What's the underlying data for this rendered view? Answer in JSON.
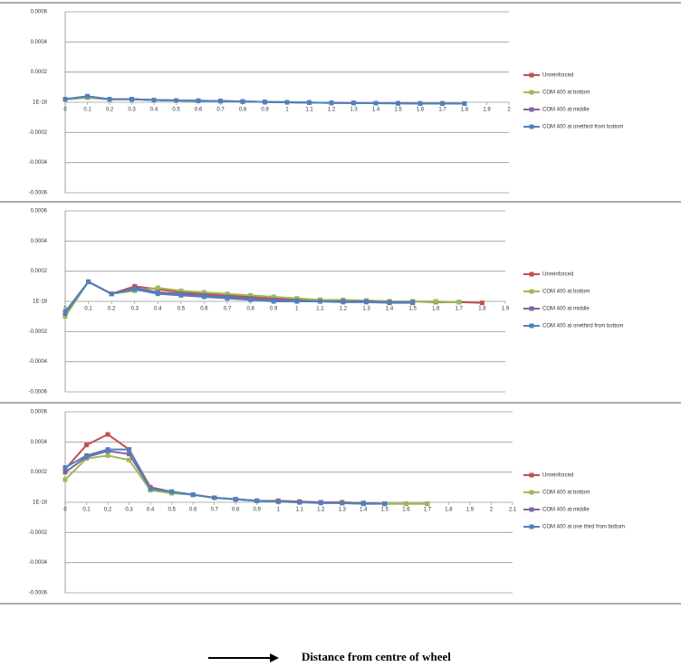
{
  "chart_data": [
    {
      "type": "line",
      "x": [
        0,
        0.1,
        0.2,
        0.3,
        0.4,
        0.5,
        0.6,
        0.7,
        0.8,
        0.9,
        1,
        1.1,
        1.2,
        1.3,
        1.4,
        1.5,
        1.6,
        1.7,
        1.8
      ],
      "xlim": [
        0,
        2
      ],
      "xticks": [
        0,
        0.1,
        0.2,
        0.3,
        0.4,
        0.5,
        0.6,
        0.7,
        0.8,
        0.9,
        1,
        1.1,
        1.2,
        1.3,
        1.4,
        1.5,
        1.6,
        1.7,
        1.8,
        1.9,
        2
      ],
      "ylim": [
        -0.0006,
        0.0006
      ],
      "yticks": [
        0.0006,
        0.0004,
        0.0002,
        {
          "value": 1e-18,
          "label": "1E-18"
        },
        -0.0002,
        -0.0004,
        -0.0006
      ],
      "grid": true,
      "series": [
        {
          "name": "Unreinforced",
          "color": "#c0504d",
          "values": [
            2e-05,
            3e-05,
            2e-05,
            2e-05,
            1.5e-05,
            1.2e-05,
            1e-05,
            8e-06,
            5e-06,
            2e-06,
            0,
            -2e-06,
            -4e-06,
            -5e-06,
            -6e-06,
            -7e-06,
            -8e-06,
            -8e-06,
            -9e-06
          ]
        },
        {
          "name": "COM 400 at bottom",
          "color": "#9bbb59",
          "values": [
            2e-05,
            3e-05,
            2e-05,
            2e-05,
            1.5e-05,
            1.2e-05,
            1e-05,
            8e-06,
            5e-06,
            2e-06,
            0,
            -2e-06,
            -4e-06,
            -5e-06,
            -6e-06,
            -7e-06,
            -8e-06,
            -8e-06,
            -9e-06
          ]
        },
        {
          "name": "COM 400 at middle",
          "color": "#8064a2",
          "values": [
            2e-05,
            4e-05,
            2e-05,
            2e-05,
            1.5e-05,
            1.2e-05,
            1e-05,
            8e-06,
            5e-06,
            2e-06,
            0,
            -2e-06,
            -4e-06,
            -5e-06,
            -6e-06,
            -7e-06,
            -8e-06,
            -8e-06,
            -9e-06
          ]
        },
        {
          "name": "COM 400 at onethird from bottom",
          "color": "#4f81bd",
          "values": [
            2e-05,
            4e-05,
            2e-05,
            2e-05,
            1.5e-05,
            1.2e-05,
            1e-05,
            8e-06,
            5e-06,
            2e-06,
            0,
            -2e-06,
            -4e-06,
            -5e-06,
            -6e-06,
            -7e-06,
            -8e-06,
            -8e-06,
            -9e-06
          ]
        }
      ]
    },
    {
      "type": "line",
      "x": [
        0,
        0.1,
        0.2,
        0.3,
        0.4,
        0.5,
        0.6,
        0.7,
        0.8,
        0.9,
        1,
        1.1,
        1.2,
        1.3,
        1.4,
        1.5,
        1.6,
        1.7,
        1.8
      ],
      "xlim": [
        0,
        1.9
      ],
      "xticks": [
        0,
        0.1,
        0.2,
        0.3,
        0.4,
        0.5,
        0.6,
        0.7,
        0.8,
        0.9,
        1,
        1.1,
        1.2,
        1.3,
        1.4,
        1.5,
        1.6,
        1.7,
        1.8,
        1.9
      ],
      "ylim": [
        -0.0006,
        0.0006
      ],
      "yticks": [
        0.0006,
        0.0004,
        0.0002,
        {
          "value": 1e-18,
          "label": "1E-18"
        },
        -0.0002,
        -0.0004,
        -0.0006
      ],
      "grid": true,
      "series": [
        {
          "name": "Unreinforced",
          "color": "#c0504d",
          "values": [
            -8e-05,
            0.00013,
            5e-05,
            0.0001,
            8e-05,
            6e-05,
            5e-05,
            4e-05,
            3e-05,
            2e-05,
            1e-05,
            1e-05,
            5e-06,
            5e-06,
            0,
            0,
            -5e-06,
            -5e-06,
            -1e-05
          ]
        },
        {
          "name": "COM 400 at bottom",
          "color": "#9bbb59",
          "values": [
            -0.0001,
            0.00013,
            5e-05,
            7e-05,
            9e-05,
            7e-05,
            6e-05,
            5e-05,
            4e-05,
            3e-05,
            2e-05,
            1e-05,
            1e-05,
            5e-06,
            0,
            0,
            0,
            -5e-06,
            null
          ]
        },
        {
          "name": "COM 400 at middle",
          "color": "#8064a2",
          "values": [
            -8e-05,
            0.00013,
            5e-05,
            9e-05,
            6e-05,
            5e-05,
            4e-05,
            3e-05,
            2e-05,
            1e-05,
            5e-06,
            0,
            0,
            0,
            -5e-06,
            -5e-06,
            null,
            null,
            null
          ]
        },
        {
          "name": "COM 400 at onethird from bottom",
          "color": "#4f81bd",
          "values": [
            -7e-05,
            0.00013,
            5e-05,
            8e-05,
            5e-05,
            4e-05,
            3e-05,
            2e-05,
            1e-05,
            0,
            0,
            0,
            -5e-06,
            -5e-06,
            -1e-05,
            -1e-05,
            null,
            null,
            null
          ]
        }
      ]
    },
    {
      "type": "line",
      "x": [
        0,
        0.1,
        0.2,
        0.3,
        0.4,
        0.5,
        0.6,
        0.7,
        0.8,
        0.9,
        1,
        1.1,
        1.2,
        1.3,
        1.4,
        1.5,
        1.6,
        1.7
      ],
      "xlim": [
        0,
        2.1
      ],
      "xticks": [
        0,
        0.1,
        0.2,
        0.3,
        0.4,
        0.5,
        0.6,
        0.7,
        0.8,
        0.9,
        1,
        1.1,
        1.2,
        1.3,
        1.4,
        1.5,
        1.6,
        1.7,
        1.8,
        1.9,
        2,
        2.1
      ],
      "ylim": [
        -0.0006,
        0.0006
      ],
      "yticks": [
        0.0006,
        0.0004,
        0.0002,
        {
          "value": 1e-18,
          "label": "1E-18"
        },
        -0.0002,
        -0.0004,
        -0.0006
      ],
      "grid": true,
      "series": [
        {
          "name": "Unreinforced",
          "color": "#c0504d",
          "values": [
            0.00022,
            0.00038,
            0.00045,
            0.00035,
            0.0001,
            7e-05,
            5e-05,
            3e-05,
            2e-05,
            1e-05,
            1e-05,
            5e-06,
            0,
            0,
            -5e-06,
            -1e-05,
            -1e-05,
            -1e-05
          ]
        },
        {
          "name": "COM 400 at bottom",
          "color": "#9bbb59",
          "values": [
            0.00015,
            0.00029,
            0.00031,
            0.00028,
            8e-05,
            6e-05,
            5e-05,
            3e-05,
            2e-05,
            1e-05,
            5e-06,
            0,
            0,
            -5e-06,
            -1e-05,
            -1e-05,
            -1e-05,
            -1e-05
          ]
        },
        {
          "name": "COM 400 at middle",
          "color": "#8064a2",
          "values": [
            0.0002,
            0.0003,
            0.00034,
            0.00032,
            9e-05,
            7e-05,
            5e-05,
            3e-05,
            2e-05,
            1e-05,
            5e-06,
            0,
            0,
            -5e-06,
            -5e-06,
            -1e-05,
            null,
            null
          ]
        },
        {
          "name": "COM 400 at one third from bottom",
          "color": "#4f81bd",
          "values": [
            0.00023,
            0.00031,
            0.00035,
            0.00035,
            9e-05,
            7e-05,
            5e-05,
            3e-05,
            2e-05,
            1e-05,
            5e-06,
            0,
            -5e-06,
            -5e-06,
            -1e-05,
            -1e-05,
            null,
            null
          ]
        }
      ]
    }
  ],
  "caption": "Distance from centre of wheel"
}
